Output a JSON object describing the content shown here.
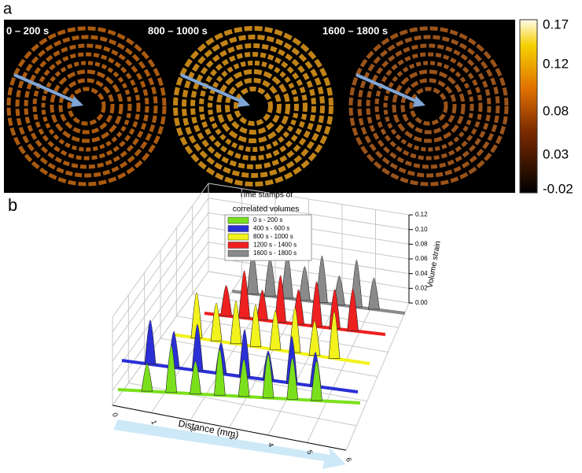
{
  "panel_a": {
    "label": "a",
    "time_labels": [
      "0 – 200 s",
      "800 – 1000 s",
      "1600 – 1800 s"
    ],
    "colorbar_ticks": [
      "0.17",
      "0.12",
      "0.08",
      "0.03",
      "-0.02"
    ]
  },
  "panel_b": {
    "label": "b",
    "legend_title": [
      "Time stamps of",
      "correlated volumes"
    ],
    "legend": [
      {
        "name": "0 s - 200 s",
        "color": "#7be01c"
      },
      {
        "name": "400 s - 600 s",
        "color": "#2a2fd6"
      },
      {
        "name": "800 s - 1000 s",
        "color": "#f2f21c"
      },
      {
        "name": "1200 s - 1400 s",
        "color": "#ee2020"
      },
      {
        "name": "1600 s - 1800 s",
        "color": "#8a8a8a"
      }
    ],
    "z_axis_label": "Volume strain",
    "z_ticks": [
      "0.00",
      "0.02",
      "0.04",
      "0.06",
      "0.08",
      "0.10",
      "0.12"
    ],
    "x_axis_label": "Distance (mm)",
    "x_ticks": [
      "0",
      "1",
      "2",
      "3",
      "4",
      "5",
      "6"
    ]
  }
}
